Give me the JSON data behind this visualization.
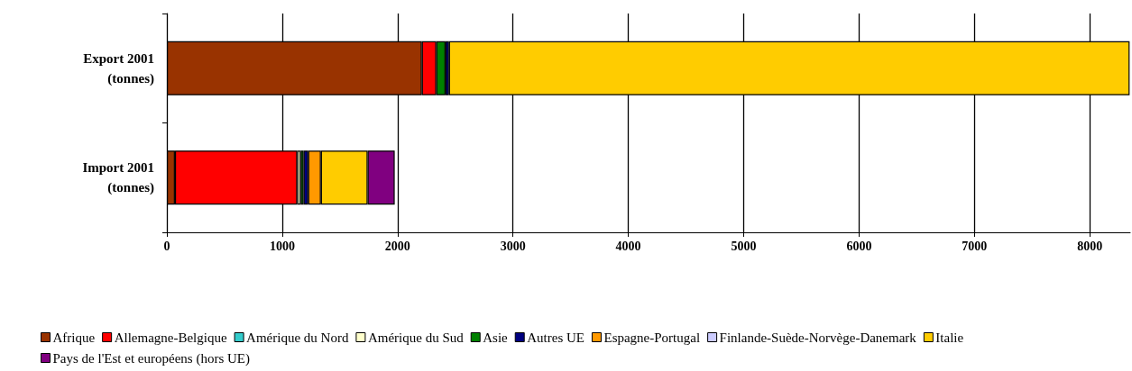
{
  "chart_data": {
    "type": "bar",
    "orientation": "horizontal",
    "stacked": true,
    "categories": [
      "Export 2001\n(tonnes)",
      "Import 2001\n(tonnes)"
    ],
    "series": [
      {
        "name": "Afrique",
        "color": "#993300",
        "values": [
          2210,
          70
        ]
      },
      {
        "name": "Allemagne-Belgique",
        "color": "#ff0000",
        "values": [
          125,
          1060
        ]
      },
      {
        "name": "Amérique du Nord",
        "color": "#33cccc",
        "values": [
          null,
          null
        ]
      },
      {
        "name": "Amérique du Sud",
        "color": "#ffffcc",
        "values": [
          null,
          30
        ]
      },
      {
        "name": "Asie",
        "color": "#008000",
        "values": [
          80,
          25
        ]
      },
      {
        "name": "Autres UE",
        "color": "#000080",
        "values": [
          30,
          40
        ]
      },
      {
        "name": "Espagne-Portugal",
        "color": "#ff9900",
        "values": [
          null,
          110
        ]
      },
      {
        "name": "Finlande-Suède-Norvège-Danemark",
        "color": "#ccccff",
        "values": [
          null,
          null
        ]
      },
      {
        "name": "Italie",
        "color": "#ffcc00",
        "values": [
          5900,
          405
        ]
      },
      {
        "name": "Pays de l'Est et européens (hors UE)",
        "color": "#800080",
        "values": [
          null,
          235
        ]
      }
    ],
    "xlim": [
      0,
      8350
    ],
    "xticks": [
      0,
      1000,
      2000,
      3000,
      4000,
      5000,
      6000,
      7000,
      8000
    ],
    "grid": "x",
    "legend": "bottom"
  }
}
